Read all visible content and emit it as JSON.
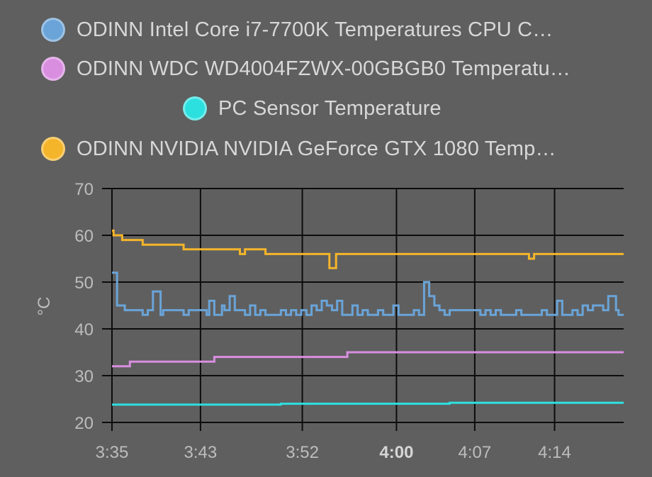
{
  "legend": [
    {
      "label": "ODINN Intel Core i7-7700K Temperatures CPU C…",
      "color": "#6aa4d8"
    },
    {
      "label": "ODINN WDC WD4004FZWX-00GBGB0 Temperatu…",
      "color": "#d98ee0"
    },
    {
      "label": "PC Sensor Temperature",
      "color": "#2de0e0"
    },
    {
      "label": "ODINN NVIDIA NVIDIA GeForce GTX 1080 Temp…",
      "color": "#f5b52a"
    }
  ],
  "chart_data": {
    "type": "line",
    "ylabel": "°C",
    "ylim": [
      20,
      70
    ],
    "yticks": [
      "20",
      "30",
      "40",
      "50",
      "60",
      "70"
    ],
    "xlim": [
      0,
      100
    ],
    "xticks": [
      {
        "label": "3:35",
        "x": 0,
        "bold": false
      },
      {
        "label": "3:43",
        "x": 17.3,
        "bold": false
      },
      {
        "label": "3:52",
        "x": 37.2,
        "bold": false
      },
      {
        "label": "4:00",
        "x": 55.6,
        "bold": true
      },
      {
        "label": "4:07",
        "x": 70.9,
        "bold": false
      },
      {
        "label": "4:14",
        "x": 86.5,
        "bold": false
      }
    ],
    "grid": true,
    "step": true,
    "series": [
      {
        "name": "ODINN Intel Core i7-7700K Temperatures CPU C…",
        "color": "#6aa4d8",
        "points": [
          [
            0,
            52
          ],
          [
            1,
            45
          ],
          [
            2.5,
            44
          ],
          [
            5,
            44
          ],
          [
            6,
            43
          ],
          [
            7,
            44
          ],
          [
            8,
            48
          ],
          [
            9.5,
            43
          ],
          [
            10,
            44
          ],
          [
            13,
            44
          ],
          [
            14,
            43
          ],
          [
            15,
            44
          ],
          [
            18,
            44
          ],
          [
            18.5,
            43
          ],
          [
            19,
            46
          ],
          [
            20,
            43
          ],
          [
            21.5,
            45
          ],
          [
            22,
            44
          ],
          [
            23,
            47
          ],
          [
            24,
            44
          ],
          [
            25.5,
            44
          ],
          [
            26,
            43
          ],
          [
            27,
            45
          ],
          [
            28,
            43
          ],
          [
            29,
            44
          ],
          [
            30,
            43
          ],
          [
            32,
            43
          ],
          [
            33,
            44
          ],
          [
            34,
            43
          ],
          [
            35,
            44
          ],
          [
            36,
            43
          ],
          [
            37,
            44
          ],
          [
            38,
            43
          ],
          [
            39,
            45
          ],
          [
            40,
            44
          ],
          [
            41,
            46
          ],
          [
            42,
            45
          ],
          [
            43,
            44
          ],
          [
            44,
            46
          ],
          [
            45,
            43
          ],
          [
            46,
            43
          ],
          [
            47,
            45
          ],
          [
            48,
            43
          ],
          [
            49,
            44
          ],
          [
            50,
            43
          ],
          [
            51,
            43
          ],
          [
            52,
            44
          ],
          [
            53,
            43
          ],
          [
            55,
            45
          ],
          [
            56,
            43
          ],
          [
            58,
            43
          ],
          [
            59,
            44
          ],
          [
            60,
            43
          ],
          [
            61,
            50
          ],
          [
            62,
            47
          ],
          [
            63,
            45
          ],
          [
            64,
            44
          ],
          [
            65,
            43
          ],
          [
            66,
            44
          ],
          [
            68,
            44
          ],
          [
            70,
            44
          ],
          [
            72,
            43
          ],
          [
            73,
            44
          ],
          [
            74,
            43
          ],
          [
            75,
            44
          ],
          [
            76,
            43
          ],
          [
            78,
            43
          ],
          [
            79,
            44
          ],
          [
            80,
            43
          ],
          [
            82,
            43
          ],
          [
            84,
            44
          ],
          [
            85,
            43
          ],
          [
            87,
            46
          ],
          [
            88,
            43
          ],
          [
            89,
            43
          ],
          [
            90,
            44
          ],
          [
            91,
            43
          ],
          [
            92,
            45
          ],
          [
            93,
            44
          ],
          [
            94,
            45
          ],
          [
            96,
            44
          ],
          [
            97,
            47
          ],
          [
            98.5,
            44
          ],
          [
            99,
            43
          ],
          [
            100,
            43
          ]
        ]
      },
      {
        "name": "ODINN WDC WD4004FZWX-00GBGB0 Temperatu…",
        "color": "#d98ee0",
        "points": [
          [
            0,
            32
          ],
          [
            3.5,
            33
          ],
          [
            20,
            34
          ],
          [
            46,
            35
          ],
          [
            100,
            35
          ]
        ]
      },
      {
        "name": "PC Sensor Temperature",
        "color": "#2de0e0",
        "points": [
          [
            0,
            23.8
          ],
          [
            33,
            24
          ],
          [
            66,
            24.2
          ],
          [
            100,
            24.2
          ]
        ]
      },
      {
        "name": "ODINN NVIDIA NVIDIA GeForce GTX 1080 Temp…",
        "color": "#f5b52a",
        "points": [
          [
            0,
            61
          ],
          [
            0.3,
            60
          ],
          [
            2,
            59
          ],
          [
            6,
            58
          ],
          [
            14,
            57
          ],
          [
            25,
            56
          ],
          [
            26,
            57
          ],
          [
            30,
            56
          ],
          [
            42,
            56
          ],
          [
            42.5,
            53
          ],
          [
            43.8,
            56
          ],
          [
            81.5,
            55
          ],
          [
            82.5,
            56
          ],
          [
            100,
            56
          ]
        ]
      }
    ]
  }
}
